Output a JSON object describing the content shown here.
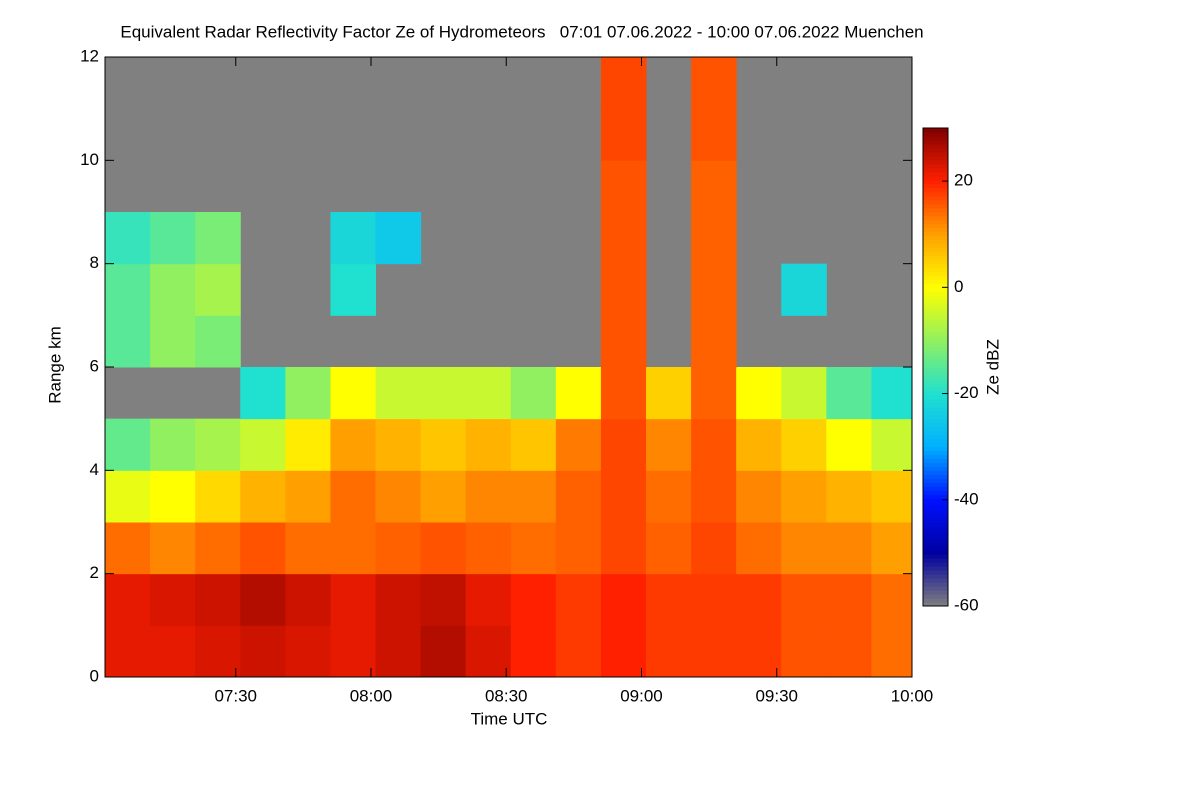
{
  "chart_data": {
    "type": "heatmap",
    "title": "Equivalent Radar Reflectivity Factor Ze of Hydrometeors   07:01 07.06.2022 - 10:00 07.06.2022 Muenchen",
    "x_label": "Time UTC",
    "y_label": "Range km",
    "colorbar_label": "Ze dBZ",
    "x": [
      426,
      436,
      446,
      456,
      466,
      476,
      486,
      496,
      506,
      516,
      526,
      536,
      546,
      556,
      566,
      576,
      586,
      596
    ],
    "y": [
      0.5,
      1.5,
      2.5,
      3.5,
      4.5,
      5.5,
      6.5,
      7.5,
      8.5,
      9.5,
      10.5,
      11.5
    ],
    "z": [
      [
        22,
        22,
        23,
        24,
        23,
        22,
        24,
        26,
        23,
        20,
        18,
        20,
        18,
        18,
        18,
        16,
        16,
        14
      ],
      [
        22,
        23,
        24,
        26,
        24,
        22,
        24,
        25,
        22,
        20,
        18,
        20,
        18,
        18,
        18,
        16,
        16,
        14
      ],
      [
        14,
        12,
        14,
        16,
        14,
        14,
        15,
        16,
        15,
        14,
        15,
        17,
        15,
        17,
        14,
        12,
        12,
        10
      ],
      [
        -2,
        0,
        4,
        8,
        10,
        14,
        12,
        10,
        12,
        12,
        15,
        17,
        14,
        16,
        12,
        10,
        8,
        6
      ],
      [
        -14,
        -10,
        -8,
        -5,
        2,
        10,
        8,
        6,
        8,
        6,
        13,
        17,
        12,
        16,
        8,
        5,
        0,
        -5
      ],
      [
        null,
        null,
        null,
        -20,
        -10,
        0,
        -5,
        -5,
        -5,
        -10,
        0,
        16,
        5,
        15,
        0,
        -5,
        -15,
        -20
      ],
      [
        -15,
        -10,
        -12,
        null,
        null,
        null,
        null,
        null,
        null,
        null,
        null,
        16,
        null,
        15,
        null,
        null,
        null,
        null
      ],
      [
        -15,
        -10,
        -8,
        null,
        null,
        -20,
        null,
        null,
        null,
        null,
        null,
        16,
        null,
        15,
        null,
        -22,
        null,
        null
      ],
      [
        -18,
        -15,
        -12,
        null,
        null,
        -22,
        -25,
        null,
        null,
        null,
        null,
        16,
        null,
        15,
        null,
        null,
        null,
        null
      ],
      [
        null,
        null,
        null,
        null,
        null,
        null,
        null,
        null,
        null,
        null,
        null,
        16,
        null,
        15,
        null,
        null,
        null,
        null
      ],
      [
        null,
        null,
        null,
        null,
        null,
        null,
        null,
        null,
        null,
        null,
        null,
        17,
        null,
        16,
        null,
        null,
        null,
        null
      ],
      [
        null,
        null,
        null,
        null,
        null,
        null,
        null,
        null,
        null,
        null,
        null,
        17,
        null,
        16,
        null,
        null,
        null,
        null
      ]
    ],
    "xlim": [
      421,
      600
    ],
    "xticks": [
      {
        "value": 450,
        "label": "07:30"
      },
      {
        "value": 480,
        "label": "08:00"
      },
      {
        "value": 510,
        "label": "08:30"
      },
      {
        "value": 540,
        "label": "09:00"
      },
      {
        "value": 570,
        "label": "09:30"
      },
      {
        "value": 600,
        "label": "10:00"
      }
    ],
    "ylim": [
      0,
      12
    ],
    "yticks": [
      0,
      2,
      4,
      6,
      8,
      10,
      12
    ],
    "zlim": [
      -60,
      30
    ],
    "zticks": [
      -60,
      -40,
      -20,
      0,
      20
    ],
    "colors": [
      "#808080",
      "#0000a0",
      "#0010ff",
      "#00b0ff",
      "#20e0d0",
      "#90f060",
      "#ffff00",
      "#ffa000",
      "#ff2000",
      "#800000"
    ],
    "nodata_color": "#808080"
  }
}
